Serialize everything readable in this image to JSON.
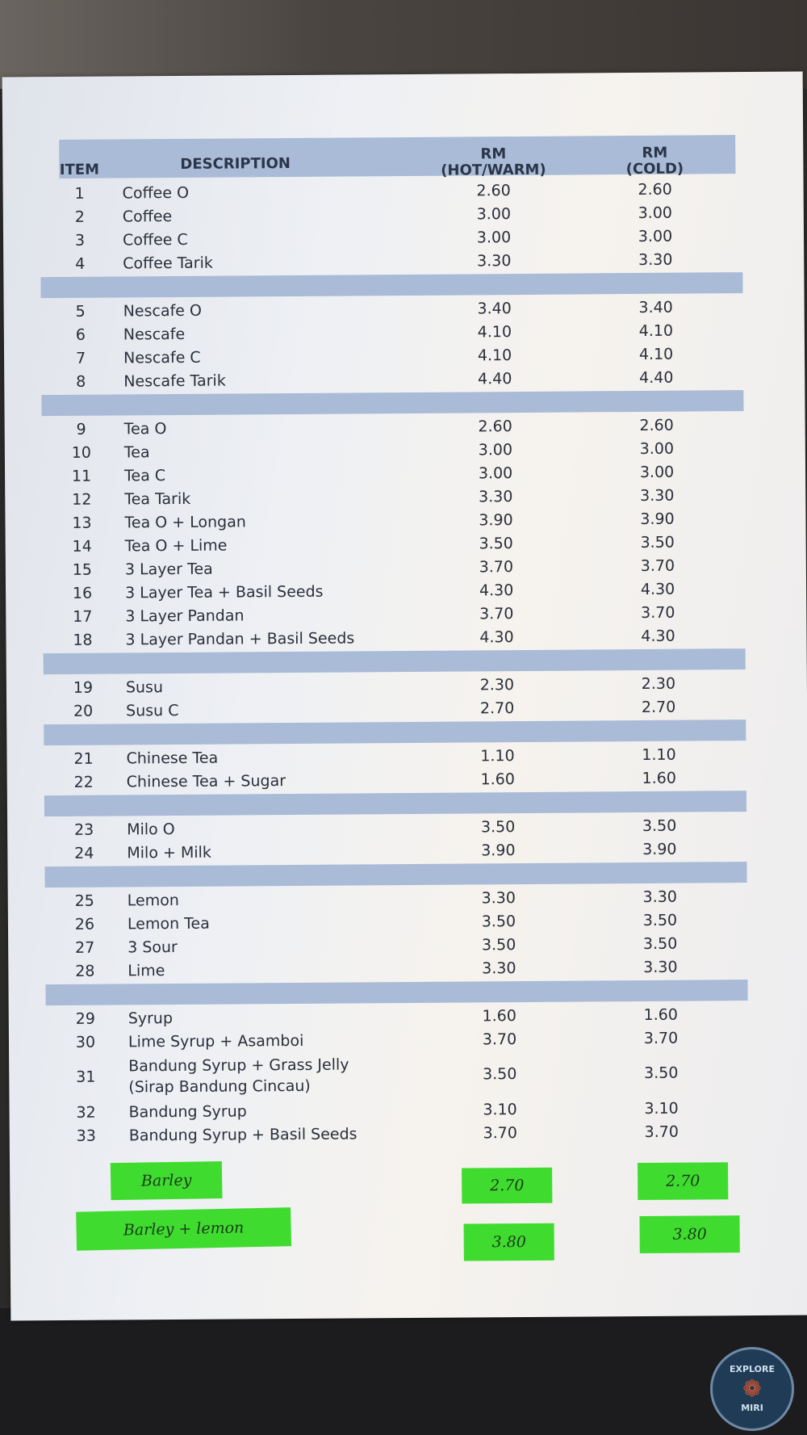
{
  "header": {
    "item": "ITEM",
    "description": "DESCRIPTION",
    "hot_line1": "RM",
    "hot_line2": "(HOT/WARM)",
    "cold_line1": "RM",
    "cold_line2": "(COLD)"
  },
  "groups": [
    [
      {
        "no": "1",
        "name": "Coffee O",
        "hot": "2.60",
        "cold": "2.60"
      },
      {
        "no": "2",
        "name": "Coffee",
        "hot": "3.00",
        "cold": "3.00"
      },
      {
        "no": "3",
        "name": "Coffee C",
        "hot": "3.00",
        "cold": "3.00"
      },
      {
        "no": "4",
        "name": "Coffee Tarik",
        "hot": "3.30",
        "cold": "3.30"
      }
    ],
    [
      {
        "no": "5",
        "name": "Nescafe O",
        "hot": "3.40",
        "cold": "3.40"
      },
      {
        "no": "6",
        "name": "Nescafe",
        "hot": "4.10",
        "cold": "4.10"
      },
      {
        "no": "7",
        "name": "Nescafe C",
        "hot": "4.10",
        "cold": "4.10"
      },
      {
        "no": "8",
        "name": "Nescafe Tarik",
        "hot": "4.40",
        "cold": "4.40"
      }
    ],
    [
      {
        "no": "9",
        "name": "Tea O",
        "hot": "2.60",
        "cold": "2.60"
      },
      {
        "no": "10",
        "name": "Tea",
        "hot": "3.00",
        "cold": "3.00"
      },
      {
        "no": "11",
        "name": "Tea C",
        "hot": "3.00",
        "cold": "3.00"
      },
      {
        "no": "12",
        "name": "Tea Tarik",
        "hot": "3.30",
        "cold": "3.30"
      },
      {
        "no": "13",
        "name": "Tea O + Longan",
        "hot": "3.90",
        "cold": "3.90"
      },
      {
        "no": "14",
        "name": "Tea O + Lime",
        "hot": "3.50",
        "cold": "3.50"
      },
      {
        "no": "15",
        "name": "3 Layer Tea",
        "hot": "3.70",
        "cold": "3.70"
      },
      {
        "no": "16",
        "name": "3 Layer Tea + Basil Seeds",
        "hot": "4.30",
        "cold": "4.30"
      },
      {
        "no": "17",
        "name": "3 Layer Pandan",
        "hot": "3.70",
        "cold": "3.70"
      },
      {
        "no": "18",
        "name": "3 Layer Pandan + Basil Seeds",
        "hot": "4.30",
        "cold": "4.30"
      }
    ],
    [
      {
        "no": "19",
        "name": "Susu",
        "hot": "2.30",
        "cold": "2.30"
      },
      {
        "no": "20",
        "name": "Susu C",
        "hot": "2.70",
        "cold": "2.70"
      }
    ],
    [
      {
        "no": "21",
        "name": "Chinese Tea",
        "hot": "1.10",
        "cold": "1.10"
      },
      {
        "no": "22",
        "name": "Chinese Tea + Sugar",
        "hot": "1.60",
        "cold": "1.60"
      }
    ],
    [
      {
        "no": "23",
        "name": "Milo O",
        "hot": "3.50",
        "cold": "3.50"
      },
      {
        "no": "24",
        "name": "Milo + Milk",
        "hot": "3.90",
        "cold": "3.90"
      }
    ],
    [
      {
        "no": "25",
        "name": "Lemon",
        "hot": "3.30",
        "cold": "3.30"
      },
      {
        "no": "26",
        "name": "Lemon Tea",
        "hot": "3.50",
        "cold": "3.50"
      },
      {
        "no": "27",
        "name": "3 Sour",
        "hot": "3.50",
        "cold": "3.50"
      },
      {
        "no": "28",
        "name": "Lime",
        "hot": "3.30",
        "cold": "3.30"
      }
    ],
    [
      {
        "no": "29",
        "name": "Syrup",
        "hot": "1.60",
        "cold": "1.60"
      },
      {
        "no": "30",
        "name": "Lime Syrup + Asamboi",
        "hot": "3.70",
        "cold": "3.70"
      },
      {
        "no": "31",
        "name": "Bandung Syrup + Grass Jelly",
        "name2": "(Sirap Bandung Cincau)",
        "hot": "3.50",
        "cold": "3.50"
      },
      {
        "no": "32",
        "name": "Bandung Syrup",
        "hot": "3.10",
        "cold": "3.10"
      },
      {
        "no": "33",
        "name": "Bandung Syrup + Basil Seeds",
        "hot": "3.70",
        "cold": "3.70"
      }
    ]
  ],
  "handwritten": [
    {
      "name": "Barley",
      "hot": "2.70",
      "cold": "2.70"
    },
    {
      "name": "Barley + lemon",
      "hot": "3.80",
      "cold": "3.80"
    }
  ],
  "colors": {
    "header_band": "#a9bbd6",
    "sticker_green": "#3fdc2f"
  },
  "watermark": {
    "top": "EXPLORE",
    "bottom": "MIRI",
    "icon": "seahorse-icon"
  }
}
